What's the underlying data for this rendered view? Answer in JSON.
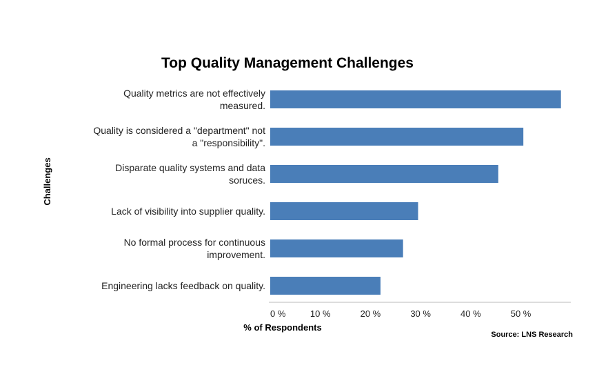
{
  "chart_data": {
    "type": "bar",
    "orientation": "horizontal",
    "title": "Top Quality Management Challenges",
    "xlabel": "% of Respondents",
    "ylabel": "Challenges",
    "source": "Source: LNS Research",
    "bar_color": "#4a7eb8",
    "xlim": [
      0,
      59
    ],
    "x_ticks": [
      0,
      10,
      20,
      30,
      40,
      50
    ],
    "x_tick_labels": [
      "0 %",
      "10 %",
      "20 %",
      "30 %",
      "40 %",
      "50 %"
    ],
    "categories": [
      [
        "Quality metrics are not effectively",
        "measured."
      ],
      [
        "Quality is considered a \"department\" not",
        "a \"responsibility\"."
      ],
      [
        "Disparate quality systems and data",
        "soruces."
      ],
      [
        "Lack of visibility into supplier quality."
      ],
      [
        "No formal process for continuous",
        "improvement."
      ],
      [
        "Engineering lacks feedback on quality."
      ]
    ],
    "values": [
      58,
      50.5,
      45.5,
      29.5,
      26.5,
      22
    ]
  }
}
